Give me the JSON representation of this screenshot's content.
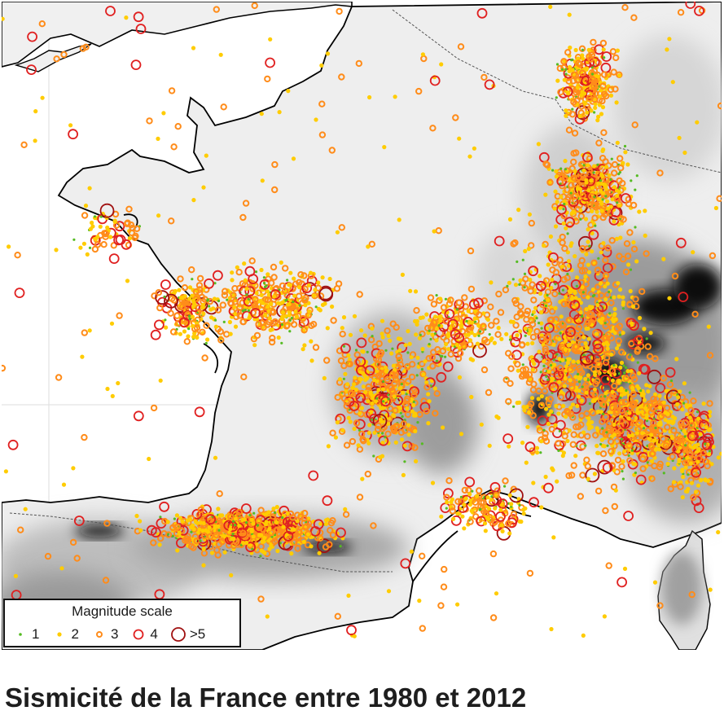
{
  "caption": "Sismicité de la France entre 1980 et 2012",
  "legend": {
    "title": "Magnitude scale",
    "items": [
      {
        "label": "1",
        "color": "#55bb22",
        "symbol": "dot"
      },
      {
        "label": "2",
        "color": "#ffcc00",
        "symbol": "dot"
      },
      {
        "label": "3",
        "color": "#ff8c1a",
        "symbol": "small-circle"
      },
      {
        "label": "4",
        "color": "#e02020",
        "symbol": "circle"
      },
      {
        "label": ">5",
        "color": "#a01010",
        "symbol": "large-circle"
      }
    ]
  },
  "map_colors": {
    "sea": "#ffffff",
    "coastline": "#000000",
    "border": "#555555",
    "relief_light": "#f2f2f2",
    "relief_mid": "#c8c8c8",
    "relief_dark": "#8a8a8a",
    "high_mountain": "#111111",
    "grid": "#dddddd"
  }
}
